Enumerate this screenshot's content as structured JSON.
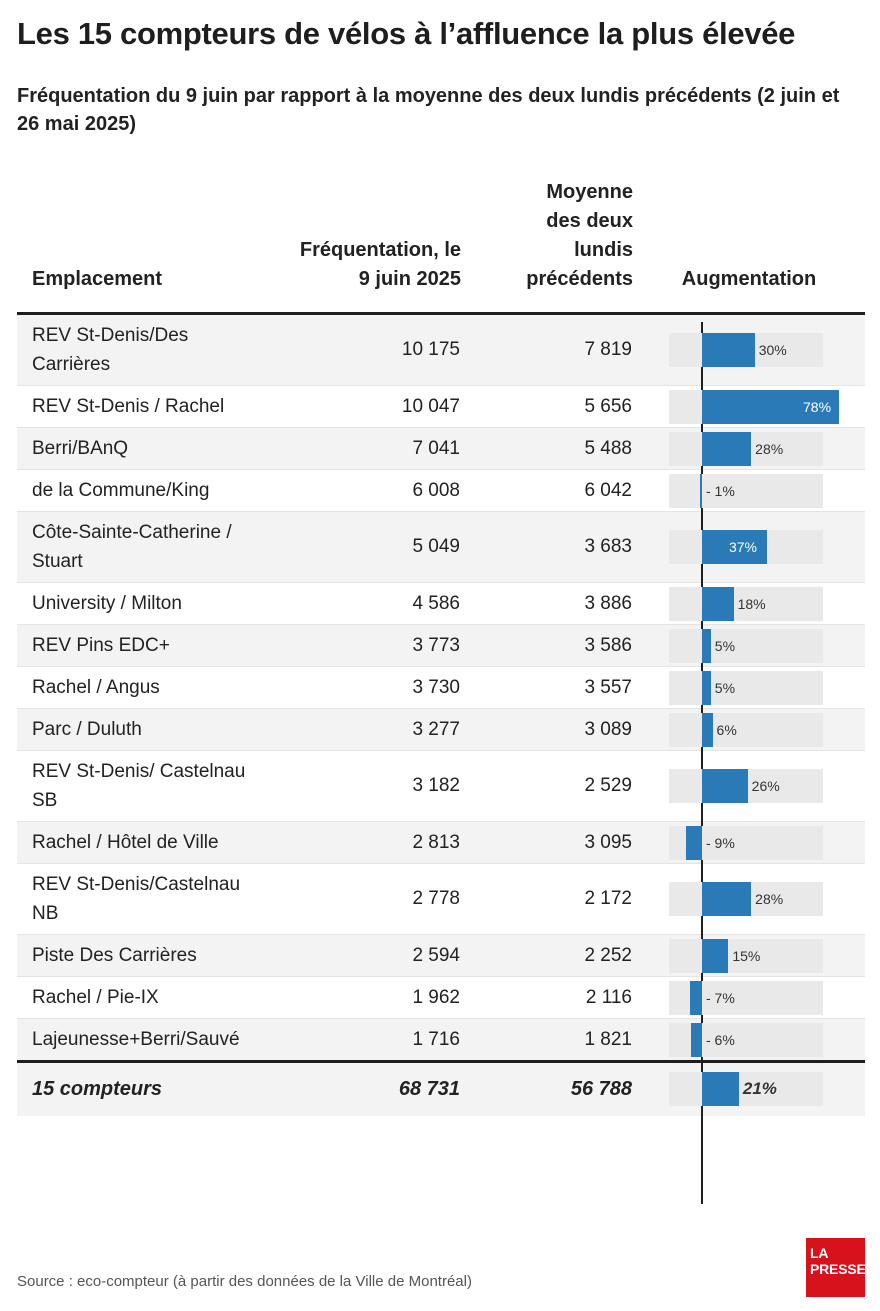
{
  "title": "Les 15 compteurs de vélos à l’affluence la plus élevée",
  "subtitle": "Fréquentation du 9 juin par rapport à la moyenne des deux lundis précédents (2 juin et 26 mai 2025)",
  "source": "Source : eco-compteur (à partir des données de la Ville de Montréal)",
  "logo": {
    "line1": "LA",
    "line2": "PRESSE"
  },
  "colors": {
    "bar": "#2a7ab8",
    "bar_bg": "#e9e9e9",
    "logo": "#d8121d"
  },
  "chart_data": {
    "type": "table",
    "title": "Les 15 compteurs de vélos à l’affluence la plus élevée",
    "columns": {
      "location": "Emplacement",
      "june9": "Fréquentation, le 9 juin 2025",
      "average": "Moyenne des deux lundis précédents",
      "increase": "Augmentation"
    },
    "rows": [
      {
        "location": "REV St-Denis/Des Carrières",
        "june9": "10 175",
        "average": "7 819",
        "pct": 30,
        "label": "30%"
      },
      {
        "location": "REV St-Denis / Rachel",
        "june9": "10 047",
        "average": "5 656",
        "pct": 78,
        "label": "78%"
      },
      {
        "location": "Berri/BAnQ",
        "june9": "7 041",
        "average": "5 488",
        "pct": 28,
        "label": "28%"
      },
      {
        "location": "de la Commune/King",
        "june9": "6 008",
        "average": "6 042",
        "pct": -1,
        "label": "- 1%"
      },
      {
        "location": "Côte-Sainte-Catherine / Stuart",
        "june9": "5 049",
        "average": "3 683",
        "pct": 37,
        "label": "37%"
      },
      {
        "location": "University / Milton",
        "june9": "4 586",
        "average": "3 886",
        "pct": 18,
        "label": "18%"
      },
      {
        "location": "REV Pins EDC+",
        "june9": "3 773",
        "average": "3 586",
        "pct": 5,
        "label": "5%"
      },
      {
        "location": "Rachel / Angus",
        "june9": "3 730",
        "average": "3 557",
        "pct": 5,
        "label": "5%"
      },
      {
        "location": "Parc / Duluth",
        "june9": "3 277",
        "average": "3 089",
        "pct": 6,
        "label": "6%"
      },
      {
        "location": "REV St-Denis/ Castelnau SB",
        "june9": "3 182",
        "average": "2 529",
        "pct": 26,
        "label": "26%"
      },
      {
        "location": "Rachel / Hôtel de Ville",
        "june9": "2 813",
        "average": "3 095",
        "pct": -9,
        "label": "- 9%"
      },
      {
        "location": "REV St-Denis/Castelnau NB",
        "june9": "2 778",
        "average": "2 172",
        "pct": 28,
        "label": "28%"
      },
      {
        "location": "Piste Des Carrières",
        "june9": "2 594",
        "average": "2 252",
        "pct": 15,
        "label": "15%"
      },
      {
        "location": "Rachel / Pie-IX",
        "june9": "1 962",
        "average": "2 116",
        "pct": -7,
        "label": "- 7%"
      },
      {
        "location": "Lajeunesse+Berri/Sauvé",
        "june9": "1 716",
        "average": "1 821",
        "pct": -6,
        "label": "- 6%"
      }
    ],
    "total": {
      "location": "15 compteurs",
      "june9": "68 731",
      "average": "56 788",
      "pct": 21,
      "label": "21%"
    },
    "xlim": [
      -10,
      78
    ]
  }
}
